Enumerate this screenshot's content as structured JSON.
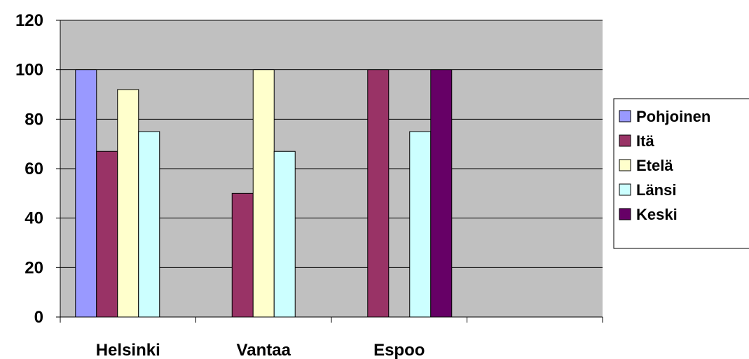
{
  "chart_data": {
    "type": "bar",
    "title": "",
    "xlabel": "",
    "ylabel": "",
    "categories": [
      "Helsinki",
      "Vantaa",
      "Espoo",
      ""
    ],
    "ylim": [
      0,
      120
    ],
    "yticks": [
      0,
      20,
      40,
      60,
      80,
      100,
      120
    ],
    "grid": true,
    "plot_background": "#c0c0c0",
    "legend_position": "right",
    "series": [
      {
        "name": "Pohjoinen",
        "color": "#9999ff",
        "values": [
          100,
          0,
          0,
          0
        ]
      },
      {
        "name": "Itä",
        "color": "#993366",
        "values": [
          67,
          50,
          100,
          0
        ]
      },
      {
        "name": "Etelä",
        "color": "#ffffcc",
        "values": [
          92,
          100,
          0,
          0
        ]
      },
      {
        "name": "Länsi",
        "color": "#ccffff",
        "values": [
          75,
          67,
          75,
          0
        ]
      },
      {
        "name": "Keski",
        "color": "#660066",
        "values": [
          0,
          0,
          100,
          0
        ]
      }
    ]
  }
}
